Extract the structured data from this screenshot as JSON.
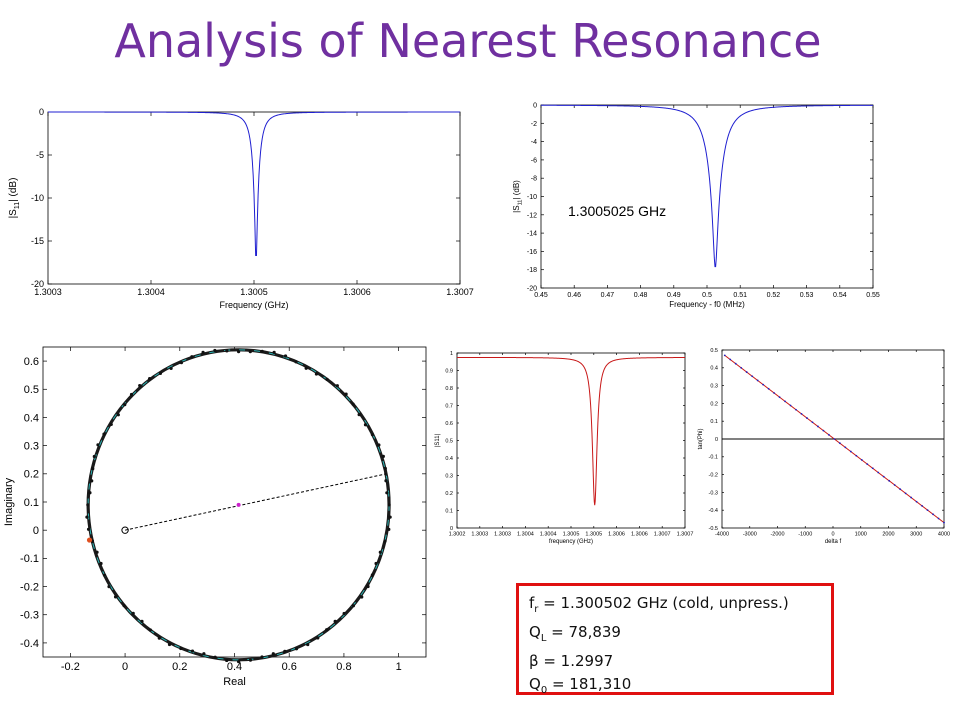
{
  "title": "Analysis of Nearest Resonance",
  "results": {
    "fr": {
      "symbol": "f",
      "sub": "r",
      "text": " = 1.300502 GHz (cold, unpress.)"
    },
    "ql": {
      "symbol": "Q",
      "sub": "L",
      "text": " = 78,839"
    },
    "beta": {
      "symbol": "β",
      "sub": "",
      "text": " = 1.2997"
    },
    "q0": {
      "symbol": "Q",
      "sub": "0",
      "text": " = 181,310"
    }
  },
  "chart_data": [
    {
      "id": "s11-vs-frequency",
      "type": "line",
      "xlabel": "Frequency (GHz)",
      "ylabel_main": "|S",
      "ylabel_sub": "11",
      "ylabel_tail": "| (dB)",
      "xlim": [
        1.3003,
        1.3007
      ],
      "ylim": [
        -20,
        0
      ],
      "xticks": [
        1.3003,
        1.3004,
        1.3005,
        1.3006,
        1.3007
      ],
      "xtick_labels": [
        "1.3003",
        "1.3004",
        "1.3005",
        "1.3006",
        "1.3007"
      ],
      "yticks": [
        0,
        -5,
        -10,
        -15,
        -20
      ],
      "ytick_labels": [
        "0",
        "-5",
        "-10",
        "-15",
        "-20"
      ],
      "series": [
        {
          "color": "#1f1fd0",
          "center": 1.300502,
          "halfwidth": 6.2e-06,
          "depth": -17.6
        }
      ]
    },
    {
      "id": "s11-vs-offset",
      "type": "line",
      "xlabel": "Frequency - f0 (MHz)",
      "ylabel_main": "|S",
      "ylabel_sub": "11",
      "ylabel_tail": "| (dB)",
      "xlim": [
        0.45,
        0.55
      ],
      "ylim": [
        -20,
        0
      ],
      "xticks": [
        0.45,
        0.46,
        0.47,
        0.48,
        0.49,
        0.5,
        0.51,
        0.52,
        0.53,
        0.54,
        0.55
      ],
      "xtick_labels": [
        "0.45",
        "0.46",
        "0.47",
        "0.48",
        "0.49",
        "0.5",
        "0.51",
        "0.52",
        "0.53",
        "0.54",
        "0.55"
      ],
      "yticks": [
        0,
        -2,
        -4,
        -6,
        -8,
        -10,
        -12,
        -14,
        -16,
        -18,
        -20
      ],
      "ytick_labels": [
        "0",
        "-2",
        "-4",
        "-6",
        "-8",
        "-10",
        "-12",
        "-14",
        "-16",
        "-18",
        "-20"
      ],
      "annotation": "1.3005025 GHz",
      "series": [
        {
          "color": "#1f1fd0",
          "center": 0.5025,
          "halfwidth": 0.0043,
          "depth": -17.8
        }
      ]
    },
    {
      "id": "smith-circle",
      "type": "scatter",
      "xlabel": "Real",
      "ylabel": "Imaginary",
      "xlim": [
        -0.3,
        1.1
      ],
      "ylim": [
        -0.45,
        0.65
      ],
      "xticks": [
        -0.2,
        0,
        0.2,
        0.4,
        0.6,
        0.8,
        1
      ],
      "xtick_labels": [
        "-0.2",
        "0",
        "0.2",
        "0.4",
        "0.6",
        "0.8",
        "1"
      ],
      "yticks": [
        0.6,
        0.5,
        0.4,
        0.3,
        0.2,
        0.1,
        0,
        -0.1,
        -0.2,
        -0.3,
        -0.4
      ],
      "ytick_labels": [
        "0.6",
        "0.5",
        "0.4",
        "0.3",
        "0.2",
        "0.1",
        "0",
        "-0.1",
        "-0.2",
        "-0.3",
        "-0.4"
      ],
      "circle": {
        "center": [
          0.415,
          0.09
        ],
        "radius": 0.55
      },
      "origin_marker": [
        0,
        0
      ],
      "center_marker": [
        0.415,
        0.09
      ],
      "line_end": [
        0.955,
        0.2
      ],
      "detuned_marker": [
        -0.13,
        -0.035
      ]
    },
    {
      "id": "magnitude-vs-frequency",
      "type": "line",
      "xlabel": "frequency (GHz)",
      "ylabel": "|S11|",
      "xlim": [
        1.3002,
        1.3007
      ],
      "ylim": [
        0,
        1
      ],
      "xticks": [
        1.3002,
        1.30025,
        1.3003,
        1.30035,
        1.3004,
        1.30045,
        1.3005,
        1.30055,
        1.3006,
        1.30065,
        1.3007
      ],
      "xtick_labels": [
        "1.3002",
        "1.3003",
        "1.3003",
        "1.3004",
        "1.3004",
        "1.3005",
        "1.3005",
        "1.3006",
        "1.3006",
        "1.3007",
        "1.3007"
      ],
      "yticks": [
        1,
        0.9,
        0.8,
        0.7,
        0.6,
        0.5,
        0.4,
        0.3,
        0.2,
        0.1,
        0
      ],
      "ytick_labels": [
        "1",
        "0.9",
        "0.8",
        "0.7",
        "0.6",
        "0.5",
        "0.4",
        "0.3",
        "0.2",
        "0.1",
        "0"
      ],
      "series": [
        {
          "color": "#c81818",
          "center": 1.300502,
          "halfwidth": 6.2e-06,
          "baseline": 0.975,
          "minimum": 0.13
        }
      ]
    },
    {
      "id": "tan-phase-vs-delta",
      "type": "line",
      "xlabel": "delta f",
      "ylabel": "tan(Phi)",
      "xlim": [
        -4000,
        4000
      ],
      "ylim": [
        -0.5,
        0.5
      ],
      "xticks": [
        -4000,
        -3000,
        -2000,
        -1000,
        0,
        1000,
        2000,
        3000,
        4000
      ],
      "xtick_labels": [
        "-4000",
        "-3000",
        "-2000",
        "-1000",
        "0",
        "1000",
        "2000",
        "3000",
        "4000"
      ],
      "yticks": [
        0.5,
        0.4,
        0.3,
        0.2,
        0.1,
        0,
        -0.1,
        -0.2,
        -0.3,
        -0.4,
        -0.5
      ],
      "ytick_labels": [
        "0.5",
        "0.4",
        "0.3",
        "0.2",
        "0.1",
        "0",
        "-0.1",
        "-0.2",
        "-0.3",
        "-0.4",
        "-0.5"
      ],
      "series": [
        {
          "color": "#c81818",
          "x": [
            -3900,
            4000
          ],
          "y": [
            0.47,
            -0.47
          ]
        }
      ],
      "zero_line": {
        "color": "#000000",
        "y": 0
      }
    }
  ]
}
